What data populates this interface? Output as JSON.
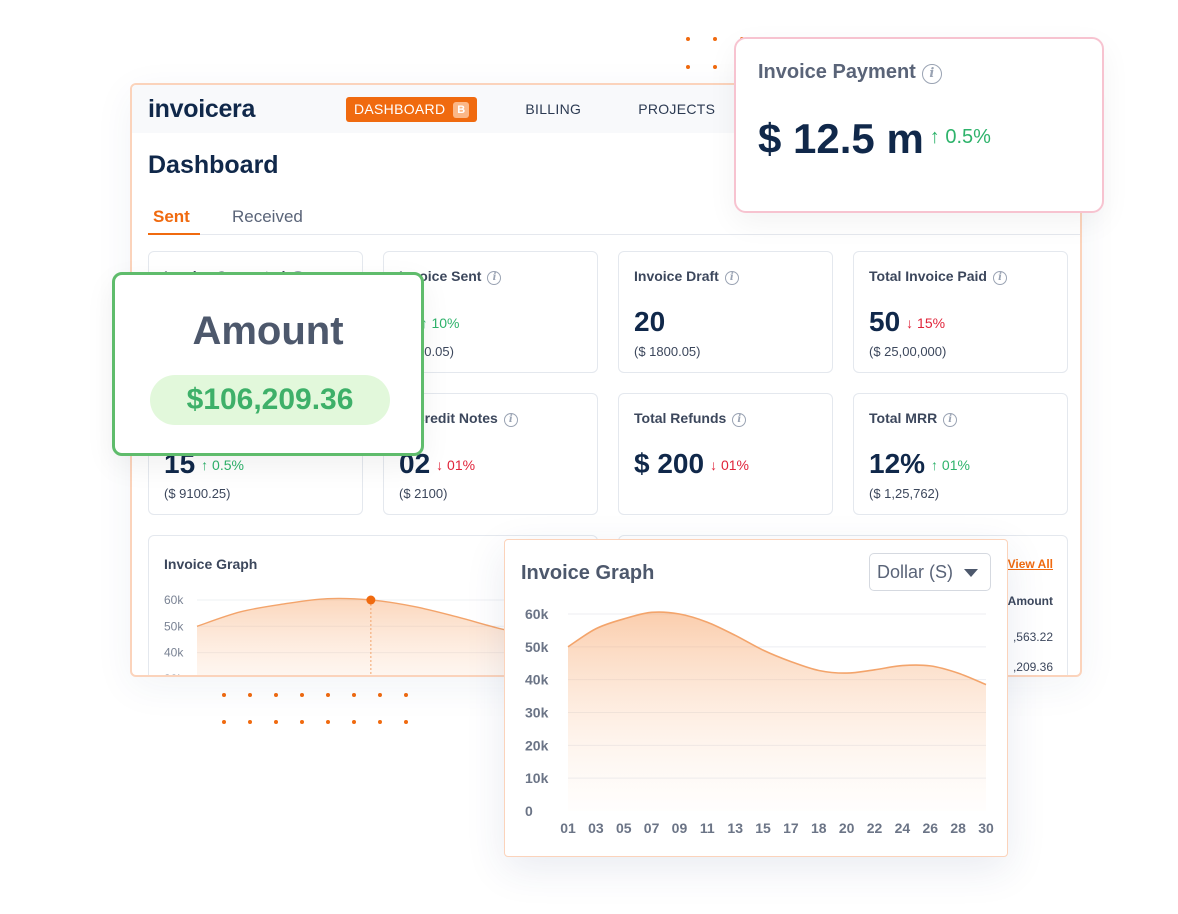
{
  "header": {
    "logo": "invoicera",
    "nav": [
      {
        "label": "DASHBOARD",
        "badge": "B",
        "active": true
      },
      {
        "label": "BILLING"
      },
      {
        "label": "PROJECTS"
      }
    ]
  },
  "page": {
    "title": "Dashboard",
    "tabs": [
      {
        "label": "Sent",
        "active": true
      },
      {
        "label": "Received"
      }
    ]
  },
  "cards": [
    {
      "label": "Invoice Generated",
      "value": "",
      "change": "",
      "direction": "",
      "sub": ""
    },
    {
      "label": "Invoice Sent",
      "value": "0",
      "change": "↑ 10%",
      "direction": "up",
      "sub": "7,340.05)"
    },
    {
      "label": "Invoice Draft",
      "value": "20",
      "change": "",
      "direction": "",
      "sub": "($ 1800.05)"
    },
    {
      "label": "Total Invoice Paid",
      "value": "50",
      "change": "↓ 15%",
      "direction": "down",
      "sub": "($ 25,00,000)"
    },
    {
      "label": "",
      "value": "15",
      "change": "↑ 0.5%",
      "direction": "up",
      "sub": "($ 9100.25)"
    },
    {
      "label": "al Credit Notes",
      "value": "02",
      "change": "↓ 01%",
      "direction": "down",
      "sub": "($ 2100)"
    },
    {
      "label": "Total Refunds",
      "value": "$ 200",
      "change": "↓ 01%",
      "direction": "down",
      "sub": ""
    },
    {
      "label": "Total MRR",
      "value": "12%",
      "change": "↑ 01%",
      "direction": "up",
      "sub": "($ 1,25,762)"
    }
  ],
  "bg_graph": {
    "title": "Invoice Graph",
    "y_ticks": [
      "60k",
      "50k",
      "40k",
      "30k"
    ]
  },
  "bg_table": {
    "view_all": "View All",
    "column": "Amount",
    "rows": [
      ",563.22",
      ",209.36"
    ]
  },
  "payment_card": {
    "label": "Invoice Payment",
    "value": "$ 12.5 m",
    "change": "↑ 0.5%"
  },
  "amount_card": {
    "title": "Amount",
    "value": "$106,209.36"
  },
  "graph_card": {
    "title": "Invoice Graph",
    "select_value": "Dollar (S)"
  },
  "chart_data": {
    "type": "area",
    "title": "Invoice Graph",
    "x": [
      "01",
      "03",
      "05",
      "07",
      "09",
      "11",
      "13",
      "15",
      "17",
      "18",
      "20",
      "22",
      "24",
      "26",
      "28",
      "30"
    ],
    "y_ticks": [
      "60k",
      "50k",
      "40k",
      "30k",
      "20k",
      "10k",
      "0"
    ],
    "series": [
      {
        "values": [
          50,
          55.5,
          58.5,
          60.5,
          60,
          57.5,
          53.5,
          49,
          45.5,
          42.8,
          42,
          43,
          44.3,
          44.2,
          42,
          38.5
        ]
      }
    ],
    "ylim": [
      0,
      60
    ],
    "grid": true,
    "color": "#f3a46b"
  },
  "colors": {
    "accent": "#f06a0f",
    "positive": "#2eb36b",
    "negative": "#e0243a"
  }
}
